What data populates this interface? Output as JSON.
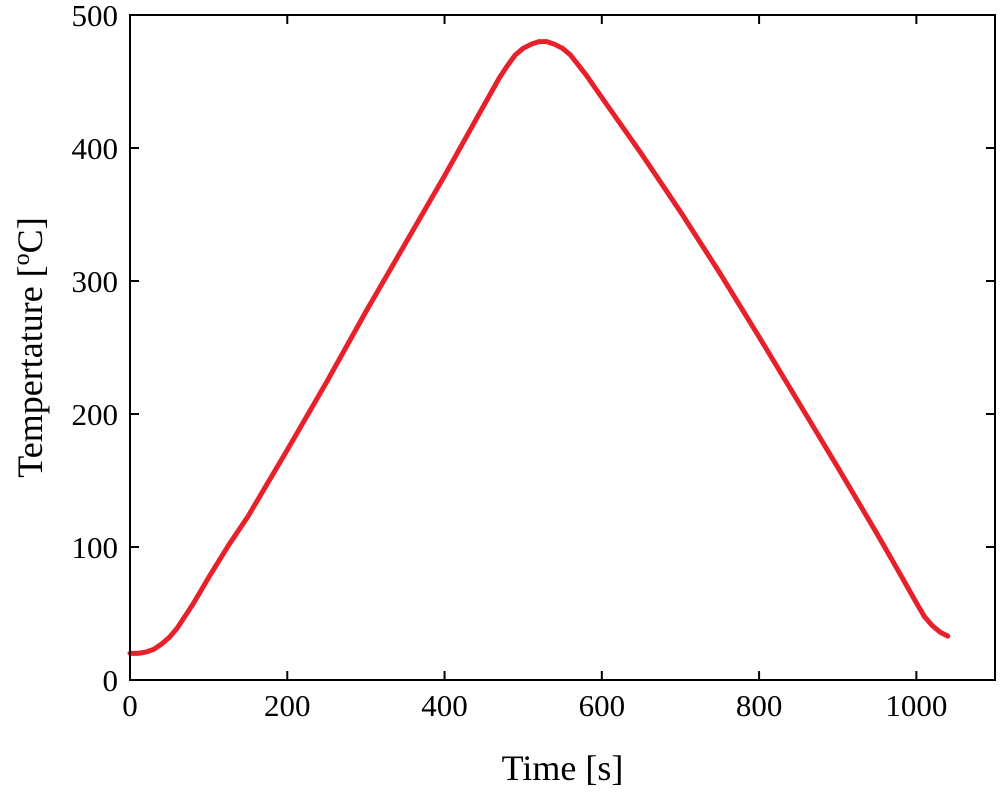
{
  "chart_data": {
    "type": "line",
    "title": "",
    "xlabel": "Time [s]",
    "ylabel_main": "Tempertature [",
    "ylabel_sup": "o",
    "ylabel_tail": "C]",
    "xlim": [
      0,
      1100
    ],
    "ylim": [
      0,
      500
    ],
    "xticks": [
      0,
      200,
      400,
      600,
      800,
      1000
    ],
    "yticks": [
      0,
      100,
      200,
      300,
      400,
      500
    ],
    "grid": false,
    "series": [
      {
        "color": "#e8202a",
        "x": [
          0,
          10,
          20,
          30,
          40,
          50,
          60,
          70,
          80,
          90,
          100,
          125,
          150,
          175,
          200,
          250,
          300,
          350,
          400,
          450,
          470,
          480,
          490,
          500,
          510,
          520,
          530,
          540,
          550,
          560,
          580,
          600,
          650,
          700,
          750,
          800,
          850,
          900,
          950,
          980,
          1000,
          1010,
          1020,
          1030,
          1040
        ],
        "y": [
          20,
          20,
          21,
          23,
          27,
          32,
          39,
          48,
          57,
          67,
          77,
          101,
          123,
          148,
          173,
          224,
          277,
          328,
          379,
          432,
          453,
          462,
          470,
          475,
          478,
          480,
          480,
          478,
          475,
          470,
          455,
          438,
          396,
          352,
          306,
          258,
          209,
          160,
          110,
          79,
          58,
          48,
          41,
          36,
          33
        ]
      }
    ]
  }
}
